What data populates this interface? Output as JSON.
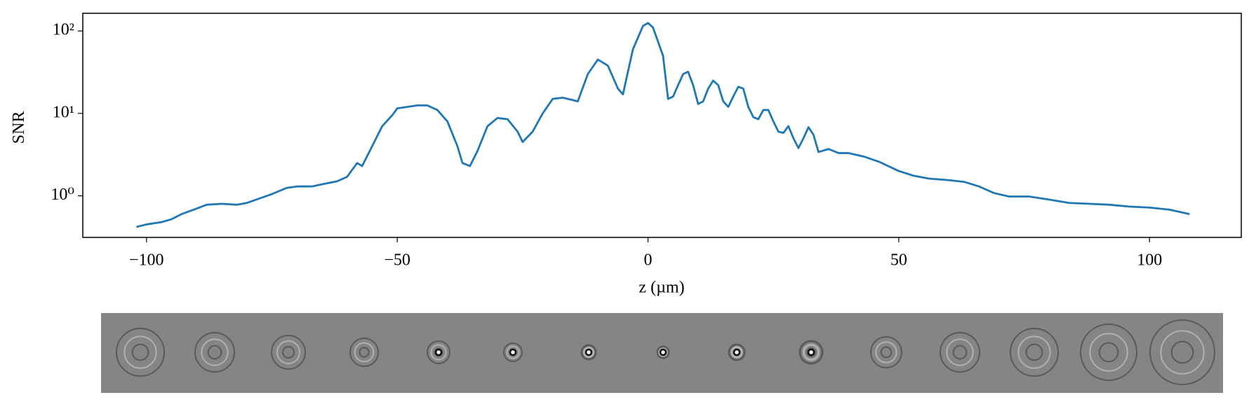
{
  "chart_data": {
    "type": "line",
    "x": [
      -102,
      -100,
      -97,
      -95,
      -93,
      -90,
      -88,
      -85,
      -82,
      -80,
      -77,
      -75,
      -72,
      -70,
      -67,
      -65,
      -62,
      -60,
      -58,
      -57,
      -55,
      -53,
      -51,
      -50,
      -48,
      -46,
      -44,
      -42,
      -40,
      -38,
      -37,
      -35.5,
      -34,
      -32,
      -30,
      -28,
      -26,
      -25,
      -23,
      -21,
      -19,
      -17,
      -15,
      -14,
      -12,
      -10,
      -8,
      -6,
      -5,
      -3,
      -1,
      0,
      1,
      3,
      4,
      5,
      6,
      7,
      8,
      9,
      10,
      11,
      12,
      13,
      14,
      15,
      16,
      17,
      18,
      19,
      20,
      21,
      22,
      23,
      24,
      25,
      26,
      27,
      28,
      29,
      30,
      31,
      32,
      33,
      34,
      36,
      38,
      40,
      43,
      46,
      50,
      53,
      56,
      60,
      63,
      66,
      69,
      72,
      76,
      80,
      84,
      88,
      92,
      96,
      100,
      104,
      108
    ],
    "series": [
      {
        "color": "#1f77b4",
        "values": [
          0.42,
          0.45,
          0.48,
          0.52,
          0.6,
          0.7,
          0.78,
          0.8,
          0.78,
          0.82,
          0.95,
          1.05,
          1.25,
          1.3,
          1.3,
          1.38,
          1.5,
          1.7,
          2.5,
          2.3,
          4,
          7,
          9.5,
          11.5,
          12,
          12.5,
          12.5,
          11,
          8,
          4,
          2.5,
          2.3,
          3.5,
          7,
          8.8,
          8.5,
          6,
          4.5,
          6,
          10,
          15,
          15.5,
          14.5,
          14,
          30,
          45,
          38,
          20,
          17,
          60,
          115,
          125,
          110,
          50,
          15,
          16,
          22,
          30,
          32,
          22,
          13,
          14,
          20,
          25,
          22,
          14,
          12,
          16,
          21,
          20,
          12,
          9,
          8.5,
          11,
          11,
          8,
          6,
          5.8,
          7,
          5,
          3.8,
          5,
          6.8,
          5.5,
          3.4,
          3.7,
          3.3,
          3.3,
          3.0,
          2.6,
          2.0,
          1.75,
          1.62,
          1.55,
          1.48,
          1.3,
          1.08,
          0.98,
          0.98,
          0.9,
          0.82,
          0.8,
          0.78,
          0.74,
          0.72,
          0.68,
          0.6
        ]
      }
    ],
    "xlabel": "z (µm)",
    "ylabel": "SNR",
    "xlim": [
      -112.7,
      118.3
    ],
    "ylim": [
      0.313,
      163.7
    ],
    "log_y": true,
    "xticks": [
      {
        "value": -100,
        "label": "−100"
      },
      {
        "value": -50,
        "label": "−50"
      },
      0,
      50,
      100
    ],
    "yticks": [
      {
        "value": 1,
        "label": "10⁰"
      },
      {
        "value": 10,
        "label": "10¹"
      },
      {
        "value": 100,
        "label": "10²"
      }
    ]
  }
}
